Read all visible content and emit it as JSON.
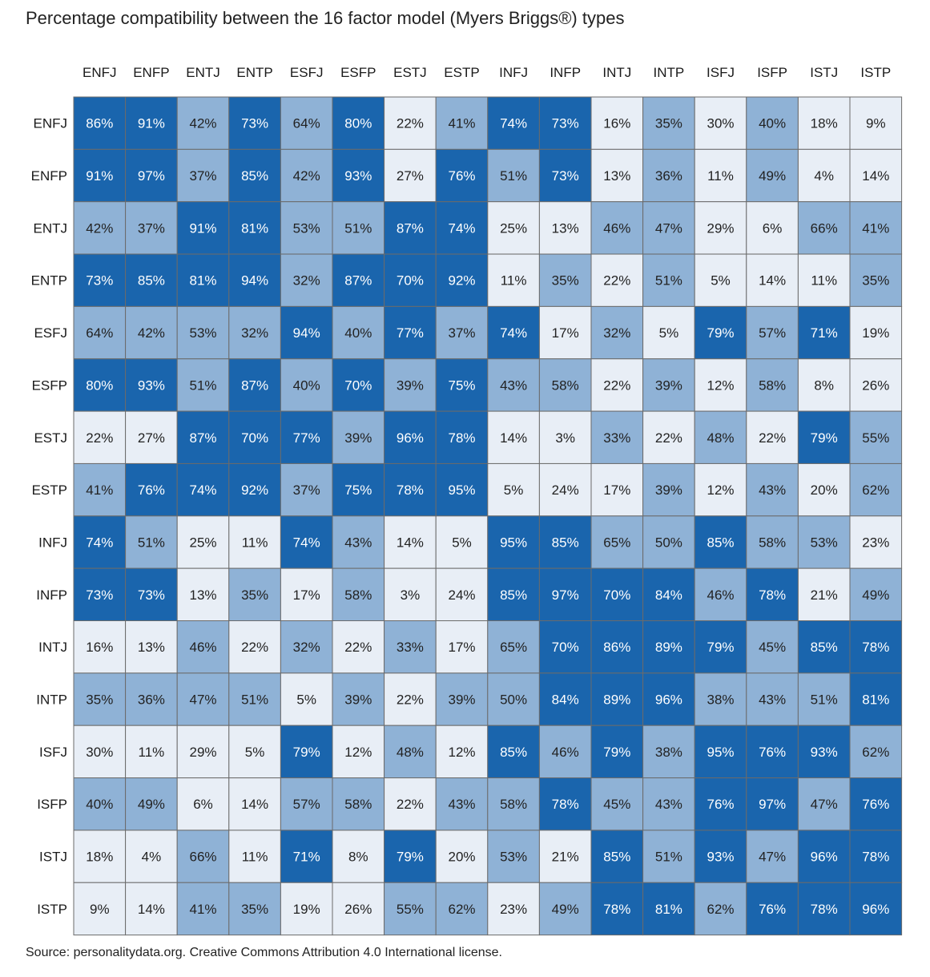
{
  "title": "Percentage compatibility between the 16 factor model (Myers Briggs®) types",
  "source": "Source: personalitydata.org. Creative Commons Attribution 4.0 International license.",
  "colors": {
    "high": "#1a65ad",
    "mid": "#8fb2d6",
    "low": "#e8eef6",
    "grid": "#6b6b6b",
    "text_dark": "#222222",
    "text_light": "#ffffff"
  },
  "chart_data": {
    "type": "heatmap",
    "title": "Percentage compatibility between the 16 factor model (Myers Briggs®) types",
    "x_categories": [
      "ENFJ",
      "ENFP",
      "ENTJ",
      "ENTP",
      "ESFJ",
      "ESFP",
      "ESTJ",
      "ESTP",
      "INFJ",
      "INFP",
      "INTJ",
      "INTP",
      "ISFJ",
      "ISFP",
      "ISTJ",
      "ISTP"
    ],
    "y_categories": [
      "ENFJ",
      "ENFP",
      "ENTJ",
      "ENTP",
      "ESFJ",
      "ESFP",
      "ESTJ",
      "ESTP",
      "INFJ",
      "INFP",
      "INTJ",
      "INTP",
      "ISFJ",
      "ISFP",
      "ISTJ",
      "ISTP"
    ],
    "unit": "%",
    "values": [
      [
        86,
        91,
        42,
        73,
        64,
        80,
        22,
        41,
        74,
        73,
        16,
        35,
        30,
        40,
        18,
        9
      ],
      [
        91,
        97,
        37,
        85,
        42,
        93,
        27,
        76,
        51,
        73,
        13,
        36,
        11,
        49,
        4,
        14
      ],
      [
        42,
        37,
        91,
        81,
        53,
        51,
        87,
        74,
        25,
        13,
        46,
        47,
        29,
        6,
        66,
        41
      ],
      [
        73,
        85,
        81,
        94,
        32,
        87,
        70,
        92,
        11,
        35,
        22,
        51,
        5,
        14,
        11,
        35
      ],
      [
        64,
        42,
        53,
        32,
        94,
        40,
        77,
        37,
        74,
        17,
        32,
        5,
        79,
        57,
        71,
        19
      ],
      [
        80,
        93,
        51,
        87,
        40,
        70,
        39,
        75,
        43,
        58,
        22,
        39,
        12,
        58,
        8,
        26
      ],
      [
        22,
        27,
        87,
        70,
        77,
        39,
        96,
        78,
        14,
        3,
        33,
        22,
        48,
        22,
        79,
        55
      ],
      [
        41,
        76,
        74,
        92,
        37,
        75,
        78,
        95,
        5,
        24,
        17,
        39,
        12,
        43,
        20,
        62
      ],
      [
        74,
        51,
        25,
        11,
        74,
        43,
        14,
        5,
        95,
        85,
        65,
        50,
        85,
        58,
        53,
        23
      ],
      [
        73,
        73,
        13,
        35,
        17,
        58,
        3,
        24,
        85,
        97,
        70,
        84,
        46,
        78,
        21,
        49
      ],
      [
        16,
        13,
        46,
        22,
        32,
        22,
        33,
        17,
        65,
        70,
        86,
        89,
        79,
        45,
        85,
        78
      ],
      [
        35,
        36,
        47,
        51,
        5,
        39,
        22,
        39,
        50,
        84,
        89,
        96,
        38,
        43,
        51,
        81
      ],
      [
        30,
        11,
        29,
        5,
        79,
        12,
        48,
        12,
        85,
        46,
        79,
        38,
        95,
        76,
        93,
        62
      ],
      [
        40,
        49,
        6,
        14,
        57,
        58,
        22,
        43,
        58,
        78,
        45,
        43,
        76,
        97,
        47,
        76
      ],
      [
        18,
        4,
        66,
        11,
        71,
        8,
        79,
        20,
        53,
        21,
        85,
        51,
        93,
        47,
        96,
        78
      ],
      [
        9,
        14,
        41,
        35,
        19,
        26,
        55,
        62,
        23,
        49,
        78,
        81,
        62,
        76,
        78,
        96
      ]
    ],
    "color_bins": [
      {
        "min": 0,
        "max": 30,
        "color": "#e8eef6"
      },
      {
        "min": 31,
        "max": 69,
        "color": "#8fb2d6"
      },
      {
        "min": 70,
        "max": 100,
        "color": "#1a65ad"
      }
    ]
  }
}
